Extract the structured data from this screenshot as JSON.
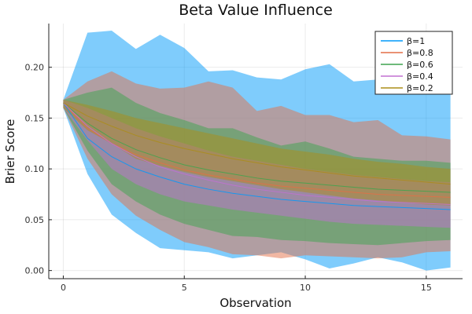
{
  "chart_data": {
    "type": "area",
    "title": "Beta Value Influence",
    "xlabel": "Observation",
    "ylabel": "Brier Score",
    "xlim": [
      -0.6,
      16.5
    ],
    "ylim": [
      -0.008,
      0.243
    ],
    "xticks": [
      0,
      5,
      10,
      15
    ],
    "yticks": [
      0.0,
      0.05,
      0.1,
      0.15,
      0.2
    ],
    "ytick_labels": [
      "0.00",
      "0.05",
      "0.10",
      "0.15",
      "0.20"
    ],
    "grid": true,
    "legend_position": "top-right",
    "x": [
      0,
      1,
      2,
      3,
      4,
      5,
      6,
      7,
      8,
      9,
      10,
      11,
      12,
      13,
      14,
      15,
      16
    ],
    "series": [
      {
        "name": "β=1",
        "color": "#009AFA",
        "fill_opacity": 0.5,
        "mean": [
          0.165,
          0.13,
          0.112,
          0.1,
          0.092,
          0.085,
          0.08,
          0.076,
          0.073,
          0.07,
          0.068,
          0.066,
          0.064,
          0.063,
          0.062,
          0.061,
          0.06
        ],
        "lower": [
          0.16,
          0.095,
          0.055,
          0.037,
          0.022,
          0.02,
          0.018,
          0.012,
          0.015,
          0.018,
          0.011,
          0.002,
          0.007,
          0.013,
          0.008,
          0.0,
          0.003
        ],
        "upper": [
          0.168,
          0.234,
          0.236,
          0.218,
          0.232,
          0.219,
          0.196,
          0.197,
          0.19,
          0.188,
          0.198,
          0.203,
          0.186,
          0.188,
          0.176,
          0.192,
          0.195
        ]
      },
      {
        "name": "β=0.8",
        "color": "#E36F47",
        "fill_opacity": 0.5,
        "mean": [
          0.165,
          0.14,
          0.125,
          0.114,
          0.106,
          0.099,
          0.094,
          0.09,
          0.086,
          0.083,
          0.081,
          0.079,
          0.077,
          0.075,
          0.074,
          0.073,
          0.072
        ],
        "lower": [
          0.16,
          0.11,
          0.075,
          0.054,
          0.04,
          0.028,
          0.023,
          0.016,
          0.015,
          0.012,
          0.015,
          0.014,
          0.013,
          0.012,
          0.013,
          0.018,
          0.019
        ],
        "upper": [
          0.168,
          0.186,
          0.196,
          0.184,
          0.179,
          0.18,
          0.186,
          0.18,
          0.157,
          0.162,
          0.153,
          0.153,
          0.146,
          0.148,
          0.133,
          0.132,
          0.129
        ]
      },
      {
        "name": "β=0.6",
        "color": "#3EA44E",
        "fill_opacity": 0.5,
        "mean": [
          0.165,
          0.145,
          0.13,
          0.119,
          0.111,
          0.104,
          0.099,
          0.095,
          0.091,
          0.088,
          0.086,
          0.084,
          0.082,
          0.08,
          0.079,
          0.078,
          0.077
        ],
        "lower": [
          0.16,
          0.118,
          0.085,
          0.068,
          0.055,
          0.046,
          0.04,
          0.034,
          0.033,
          0.03,
          0.029,
          0.027,
          0.026,
          0.025,
          0.027,
          0.029,
          0.03
        ],
        "upper": [
          0.168,
          0.175,
          0.18,
          0.165,
          0.155,
          0.148,
          0.14,
          0.14,
          0.131,
          0.123,
          0.127,
          0.12,
          0.112,
          0.11,
          0.108,
          0.108,
          0.106
        ]
      },
      {
        "name": "β=0.4",
        "color": "#C271D2",
        "fill_opacity": 0.5,
        "mean": [
          0.165,
          0.142,
          0.125,
          0.112,
          0.102,
          0.095,
          0.089,
          0.084,
          0.08,
          0.077,
          0.074,
          0.072,
          0.07,
          0.068,
          0.067,
          0.066,
          0.065
        ],
        "lower": [
          0.16,
          0.128,
          0.1,
          0.085,
          0.075,
          0.068,
          0.064,
          0.06,
          0.057,
          0.054,
          0.051,
          0.048,
          0.046,
          0.045,
          0.044,
          0.043,
          0.042
        ],
        "upper": [
          0.168,
          0.16,
          0.15,
          0.14,
          0.132,
          0.125,
          0.118,
          0.112,
          0.108,
          0.104,
          0.1,
          0.097,
          0.094,
          0.092,
          0.09,
          0.088,
          0.087
        ]
      },
      {
        "name": "β=0.2",
        "color": "#AC8D18",
        "fill_opacity": 0.5,
        "mean": [
          0.165,
          0.152,
          0.142,
          0.133,
          0.126,
          0.12,
          0.115,
          0.11,
          0.106,
          0.102,
          0.099,
          0.096,
          0.093,
          0.091,
          0.089,
          0.087,
          0.085
        ],
        "lower": [
          0.16,
          0.138,
          0.125,
          0.11,
          0.103,
          0.097,
          0.092,
          0.088,
          0.084,
          0.08,
          0.077,
          0.074,
          0.071,
          0.069,
          0.067,
          0.065,
          0.064
        ],
        "upper": [
          0.168,
          0.163,
          0.157,
          0.15,
          0.145,
          0.14,
          0.135,
          0.13,
          0.125,
          0.12,
          0.117,
          0.114,
          0.11,
          0.107,
          0.105,
          0.102,
          0.1
        ]
      }
    ]
  }
}
